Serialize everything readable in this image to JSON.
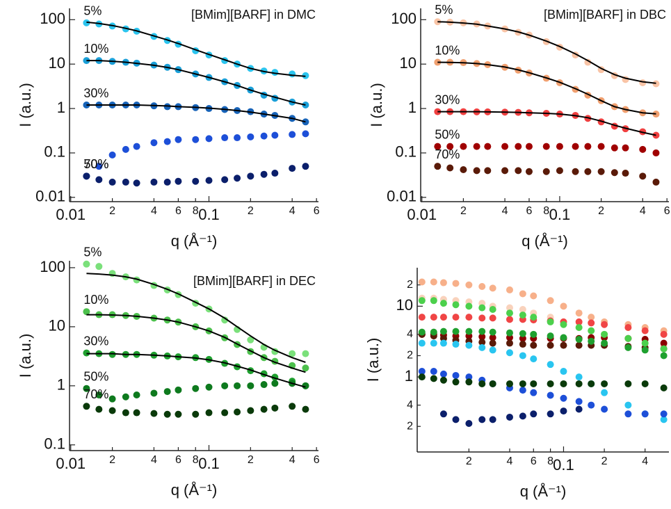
{
  "chart_data": [
    {
      "type": "scatter",
      "title": "[BMim][BARF] in DMC",
      "xlabel": "q (Å⁻¹)",
      "ylabel": "I (a.u.)",
      "xscale": "log",
      "yscale": "log",
      "xlim": [
        0.0098,
        0.62
      ],
      "ylim": [
        0.008,
        180
      ],
      "xticks": [
        0.01,
        {
          "value": 0.02,
          "label": "2"
        },
        {
          "value": 0.04,
          "label": "4"
        },
        {
          "value": 0.06,
          "label": "6"
        },
        {
          "value": 0.08,
          "label": "8"
        },
        0.1,
        {
          "value": 0.2,
          "label": "2"
        },
        {
          "value": 0.4,
          "label": "4"
        },
        {
          "value": 0.6,
          "label": "6"
        }
      ],
      "yticks": [
        0.01,
        0.1,
        1,
        10,
        100
      ],
      "x": [
        0.013,
        0.016,
        0.02,
        0.025,
        0.03,
        0.04,
        0.05,
        0.06,
        0.08,
        0.1,
        0.13,
        0.16,
        0.2,
        0.25,
        0.3,
        0.4,
        0.5
      ],
      "series": [
        {
          "name": "5%",
          "color": "#2bc4ee",
          "values": [
            85,
            80,
            72,
            62,
            55,
            42,
            34,
            28,
            20,
            16,
            12,
            10,
            8,
            7,
            6.5,
            6,
            5.5
          ]
        },
        {
          "name": "10%",
          "color": "#1a9fd8",
          "values": [
            12,
            12,
            11.5,
            11,
            10.5,
            9.5,
            8.5,
            7.5,
            6,
            5,
            4,
            3.3,
            2.6,
            2,
            1.7,
            1.4,
            1.2
          ]
        },
        {
          "name": "30%",
          "color": "#1763b8",
          "values": [
            1.2,
            1.2,
            1.2,
            1.2,
            1.2,
            1.15,
            1.1,
            1.1,
            1.05,
            1,
            0.95,
            0.9,
            0.85,
            0.75,
            0.7,
            0.6,
            0.5
          ]
        },
        {
          "name": "50%",
          "color": "#1d4fd8",
          "values": [
            0.03,
            0.05,
            0.09,
            0.12,
            0.14,
            0.17,
            0.18,
            0.2,
            0.2,
            0.21,
            0.22,
            0.22,
            0.23,
            0.24,
            0.25,
            0.26,
            0.27
          ]
        },
        {
          "name": "70%",
          "color": "#0b1f6b",
          "values": [
            0.03,
            0.025,
            0.022,
            0.022,
            0.021,
            0.022,
            0.022,
            0.023,
            0.023,
            0.024,
            0.025,
            0.027,
            0.03,
            0.033,
            0.035,
            0.045,
            0.05
          ]
        },
        {
          "mode": "line",
          "color": "#000000",
          "values": [
            88,
            82,
            74,
            64,
            56,
            43,
            35,
            29,
            21,
            16.5,
            12.5,
            10,
            8,
            6.8,
            6.2,
            5.6,
            5.3
          ]
        },
        {
          "mode": "line",
          "color": "#000000",
          "values": [
            12,
            12,
            11.6,
            11,
            10.4,
            9.4,
            8.4,
            7.5,
            6,
            5,
            4,
            3.3,
            2.6,
            2.1,
            1.8,
            1.4,
            1.2
          ]
        },
        {
          "mode": "line",
          "color": "#000000",
          "values": [
            1.2,
            1.2,
            1.2,
            1.2,
            1.2,
            1.17,
            1.14,
            1.1,
            1.06,
            1.02,
            0.96,
            0.9,
            0.83,
            0.75,
            0.69,
            0.6,
            0.5
          ]
        }
      ]
    },
    {
      "type": "scatter",
      "title": "[BMim][BARF] in DBC",
      "xlabel": "q (Å⁻¹)",
      "ylabel": "I (a.u.)",
      "xscale": "log",
      "yscale": "log",
      "xlim": [
        0.0098,
        0.62
      ],
      "ylim": [
        0.008,
        180
      ],
      "xticks": [
        0.01,
        {
          "value": 0.02,
          "label": "2"
        },
        {
          "value": 0.04,
          "label": "4"
        },
        {
          "value": 0.06,
          "label": "6"
        },
        {
          "value": 0.08,
          "label": "8"
        },
        0.1,
        {
          "value": 0.2,
          "label": "2"
        },
        {
          "value": 0.4,
          "label": "4"
        },
        {
          "value": 0.6,
          "label": "6"
        }
      ],
      "yticks": [
        0.01,
        0.1,
        1,
        10,
        100
      ],
      "x": [
        0.013,
        0.016,
        0.02,
        0.025,
        0.03,
        0.04,
        0.05,
        0.06,
        0.08,
        0.1,
        0.13,
        0.16,
        0.2,
        0.25,
        0.3,
        0.4,
        0.5
      ],
      "series": [
        {
          "name": "5%",
          "color": "#f9c4a6",
          "values": [
            90,
            88,
            85,
            80,
            72,
            62,
            52,
            45,
            32,
            24,
            16,
            11,
            7.5,
            5.5,
            4.5,
            3.8,
            3.6
          ]
        },
        {
          "name": "10%",
          "color": "#f0a070",
          "values": [
            11,
            11,
            10.8,
            10.3,
            9.7,
            8.5,
            7.3,
            6.3,
            4.8,
            3.8,
            2.7,
            2,
            1.5,
            1.1,
            0.95,
            0.8,
            0.75
          ]
        },
        {
          "name": "30%",
          "color": "#f04040",
          "values": [
            0.85,
            0.85,
            0.85,
            0.84,
            0.84,
            0.83,
            0.82,
            0.8,
            0.78,
            0.75,
            0.7,
            0.6,
            0.5,
            0.4,
            0.35,
            0.3,
            0.25
          ]
        },
        {
          "name": "50%",
          "color": "#a00000",
          "values": [
            0.14,
            0.14,
            0.14,
            0.14,
            0.14,
            0.14,
            0.14,
            0.14,
            0.14,
            0.14,
            0.14,
            0.14,
            0.14,
            0.13,
            0.13,
            0.12,
            0.1
          ]
        },
        {
          "name": "70%",
          "color": "#5a1a08",
          "values": [
            0.05,
            0.046,
            0.042,
            0.04,
            0.04,
            0.04,
            0.04,
            0.038,
            0.038,
            0.04,
            0.038,
            0.038,
            0.038,
            0.036,
            0.035,
            0.03,
            0.022
          ]
        },
        {
          "mode": "line",
          "color": "#000000",
          "values": [
            90,
            88,
            84,
            79,
            72,
            62,
            53,
            45,
            33,
            25,
            17,
            12,
            8,
            5.8,
            4.8,
            4,
            3.7
          ]
        },
        {
          "mode": "line",
          "color": "#000000",
          "values": [
            11,
            10.9,
            10.7,
            10.3,
            9.7,
            8.6,
            7.4,
            6.4,
            4.9,
            3.9,
            2.8,
            2.1,
            1.5,
            1.1,
            0.95,
            0.8,
            0.76
          ]
        },
        {
          "mode": "line",
          "color": "#000000",
          "values": [
            0.85,
            0.85,
            0.85,
            0.85,
            0.84,
            0.83,
            0.82,
            0.8,
            0.78,
            0.75,
            0.69,
            0.62,
            0.52,
            0.42,
            0.36,
            0.29,
            0.25
          ]
        }
      ]
    },
    {
      "type": "scatter",
      "title": "[BMim][BARF] in DEC",
      "xlabel": "q (Å⁻¹)",
      "ylabel": "I (a.u.)",
      "xscale": "log",
      "yscale": "log",
      "xlim": [
        0.0098,
        0.62
      ],
      "ylim": [
        0.08,
        131
      ],
      "xticks": [
        0.01,
        {
          "value": 0.02,
          "label": "2"
        },
        {
          "value": 0.04,
          "label": "4"
        },
        {
          "value": 0.06,
          "label": "6"
        },
        {
          "value": 0.08,
          "label": "8"
        },
        0.1,
        {
          "value": 0.2,
          "label": "2"
        },
        {
          "value": 0.4,
          "label": "4"
        },
        {
          "value": 0.6,
          "label": "6"
        }
      ],
      "yticks": [
        0.1,
        1,
        10,
        100
      ],
      "x": [
        0.013,
        0.016,
        0.02,
        0.025,
        0.03,
        0.04,
        0.05,
        0.06,
        0.08,
        0.1,
        0.13,
        0.16,
        0.2,
        0.25,
        0.3,
        0.4,
        0.5
      ],
      "series": [
        {
          "name": "5%",
          "color": "#7be07b",
          "values": [
            115,
            105,
            80,
            70,
            62,
            50,
            42,
            35,
            25,
            20,
            13,
            9,
            6,
            4.5,
            3.8,
            3.5,
            3.5
          ]
        },
        {
          "name": "10%",
          "color": "#4cc04c",
          "values": [
            18,
            16,
            16,
            15.5,
            15,
            14,
            13,
            12,
            10,
            8.5,
            6.5,
            5,
            3.8,
            3,
            2.6,
            2.2,
            2
          ]
        },
        {
          "name": "30%",
          "color": "#1fa02f",
          "values": [
            3.6,
            3.5,
            3.4,
            3.4,
            3.4,
            3.3,
            3.2,
            3.1,
            3,
            2.8,
            2.4,
            2.1,
            1.8,
            1.6,
            1.4,
            1.2,
            1
          ]
        },
        {
          "name": "50%",
          "color": "#0e7a1e",
          "values": [
            0.9,
            0.7,
            0.6,
            0.65,
            0.7,
            0.75,
            0.8,
            0.85,
            0.9,
            0.95,
            1,
            1,
            1,
            1.05,
            1.1,
            1.1,
            1
          ]
        },
        {
          "name": "70%",
          "color": "#0a3a0a",
          "values": [
            0.45,
            0.4,
            0.38,
            0.35,
            0.35,
            0.34,
            0.33,
            0.33,
            0.33,
            0.35,
            0.35,
            0.36,
            0.38,
            0.4,
            0.42,
            0.45,
            0.4
          ]
        },
        {
          "mode": "line",
          "color": "#000000",
          "values": [
            80,
            78,
            75,
            70,
            64,
            52,
            43,
            36,
            26,
            20,
            14,
            10,
            7,
            5,
            4,
            3,
            2.5
          ]
        },
        {
          "mode": "line",
          "color": "#000000",
          "values": [
            16,
            16,
            15.8,
            15.5,
            15,
            14,
            13,
            12,
            10,
            8.5,
            6.6,
            5.1,
            3.9,
            3,
            2.5,
            2,
            1.7
          ]
        },
        {
          "mode": "line",
          "color": "#000000",
          "values": [
            3.5,
            3.5,
            3.5,
            3.4,
            3.4,
            3.3,
            3.2,
            3.1,
            2.95,
            2.75,
            2.45,
            2.15,
            1.85,
            1.55,
            1.35,
            1.1,
            0.95
          ]
        }
      ]
    },
    {
      "type": "scatter",
      "xlabel": "q (Å⁻¹)",
      "ylabel": "I (a.u.)",
      "xscale": "log",
      "yscale": "log",
      "xlim": [
        0.0083,
        0.6
      ],
      "ylim": [
        0.087,
        35
      ],
      "xticks": [
        {
          "value": 0.02,
          "label": "2"
        },
        {
          "value": 0.04,
          "label": "4"
        },
        {
          "value": 0.06,
          "label": "6"
        },
        {
          "value": 0.08,
          "label": "8"
        },
        0.1,
        {
          "value": 0.2,
          "label": "2"
        },
        {
          "value": 0.4,
          "label": "4"
        }
      ],
      "yticks": [
        {
          "value": 20,
          "label": "2"
        },
        10,
        4,
        2,
        1,
        {
          "value": 0.4,
          "label": "4"
        },
        {
          "value": 0.2,
          "label": "2"
        }
      ],
      "x": [
        0.009,
        0.011,
        0.013,
        0.016,
        0.02,
        0.025,
        0.03,
        0.04,
        0.05,
        0.06,
        0.08,
        0.1,
        0.13,
        0.16,
        0.2,
        0.3,
        0.4,
        0.55
      ],
      "series": [
        {
          "color": "#f7b08a",
          "values": [
            22,
            22,
            21.5,
            21,
            20,
            19,
            18,
            17,
            15,
            14,
            12,
            10,
            8,
            7,
            6,
            5.5,
            5,
            4.5
          ]
        },
        {
          "color": "#f9d2bc",
          "values": [
            13,
            13,
            12.5,
            12,
            11.5,
            11,
            10,
            9.5,
            9,
            8,
            7,
            6,
            5,
            4.5,
            4,
            3.5,
            3,
            2.8
          ]
        },
        {
          "color": "#f04545",
          "values": [
            7,
            7,
            7,
            7,
            7,
            6.8,
            6.8,
            6.5,
            6.5,
            6.4,
            6.2,
            6,
            6,
            5.8,
            5.5,
            5,
            4.5,
            4
          ]
        },
        {
          "color": "#8b0000",
          "values": [
            4,
            4,
            3.9,
            3.8,
            3.8,
            3.7,
            3.6,
            3.6,
            3.5,
            3.5,
            3.5,
            3.5,
            3.5,
            3.6,
            3.6,
            3.5,
            3.4,
            3
          ]
        },
        {
          "color": "#5a1a08",
          "values": [
            4,
            3.8,
            3.5,
            3.3,
            3.2,
            3.1,
            3,
            3,
            2.9,
            2.8,
            2.8,
            2.8,
            2.8,
            2.8,
            2.8,
            2.7,
            2.6,
            2.5
          ]
        },
        {
          "color": "#4cd04c",
          "values": [
            12,
            12,
            11,
            10.5,
            10,
            9.5,
            9,
            8,
            7.5,
            7,
            6,
            5.5,
            5,
            4.5,
            4,
            3.5,
            3,
            2.5
          ]
        },
        {
          "color": "#1fa02f",
          "values": [
            4.3,
            4.3,
            4.4,
            4.4,
            4.4,
            4.4,
            4.3,
            4.2,
            4.1,
            4,
            3.8,
            3.6,
            3.4,
            3.2,
            3,
            2.6,
            2.4,
            2
          ]
        },
        {
          "color": "#29c5f0",
          "values": [
            3,
            3,
            3,
            2.9,
            2.8,
            2.6,
            2.4,
            2.2,
            2,
            1.8,
            1.5,
            1.2,
            1,
            0.8,
            0.6,
            0.4,
            0.3,
            0.25
          ]
        },
        {
          "color": "#1d4fd8",
          "values": [
            1.2,
            1.2,
            1.1,
            1.05,
            1,
            0.9,
            0.8,
            0.7,
            0.65,
            0.6,
            0.55,
            0.5,
            0.45,
            0.4,
            0.35,
            0.3,
            0.3,
            0.3
          ]
        },
        {
          "color": "#0a3a0a",
          "values": [
            1,
            0.95,
            0.9,
            0.85,
            0.85,
            0.8,
            0.8,
            0.8,
            0.8,
            0.8,
            0.8,
            0.8,
            0.8,
            0.8,
            0.8,
            0.8,
            0.8,
            0.7
          ]
        },
        {
          "color": "#0b1f6b",
          "values": [
            null,
            null,
            0.3,
            0.25,
            0.22,
            0.25,
            0.25,
            0.27,
            0.28,
            0.3,
            0.3,
            0.33,
            0.35,
            null,
            null,
            null,
            null,
            null
          ]
        }
      ]
    }
  ]
}
